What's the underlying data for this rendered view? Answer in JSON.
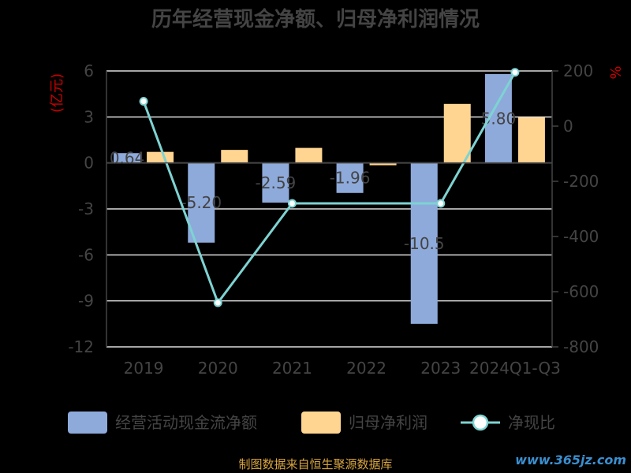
{
  "colors": {
    "background": "#000000",
    "bar_cash": "#8EAADB",
    "bar_profit": "#FFD591",
    "line": "#7ED3D2",
    "text": "#444444",
    "unit": "#CC0000",
    "grid": "#DDDDDD"
  },
  "chart_data": {
    "type": "bar",
    "title": "历年经营现金净额、归母净利润情况",
    "categories": [
      "2019",
      "2020",
      "2021",
      "2022",
      "2023",
      "2024Q1-Q3"
    ],
    "y_left": {
      "unit": "(亿元)",
      "ticks": [
        "6",
        "3",
        "0",
        "-3",
        "-6",
        "-9",
        "-12"
      ],
      "range": [
        -12,
        6
      ]
    },
    "y_right": {
      "unit": "%",
      "ticks": [
        "200",
        "0",
        "-200",
        "-400",
        "-600",
        "-800"
      ],
      "range": [
        -800,
        200
      ]
    },
    "series": [
      {
        "name": "经营活动现金流净额",
        "type": "bar",
        "axis": "left",
        "values": [
          0.64,
          -5.2,
          -2.59,
          -1.96,
          -10.5,
          5.8
        ],
        "labels": [
          "0.64",
          "-5.20",
          "-2.59",
          "-1.96",
          "-10.5",
          "5.80"
        ]
      },
      {
        "name": "归母净利润",
        "type": "bar",
        "axis": "left",
        "values": [
          0.72,
          0.85,
          0.98,
          -0.15,
          3.85,
          2.98
        ]
      },
      {
        "name": "净现比",
        "type": "line",
        "axis": "right",
        "values": [
          90,
          -640,
          -280,
          null,
          -280,
          195
        ]
      }
    ],
    "legend": {
      "position": "bottom"
    },
    "grid": true
  },
  "source": "制图数据来自恒生聚源数据库",
  "watermark": "www.365jz.com"
}
